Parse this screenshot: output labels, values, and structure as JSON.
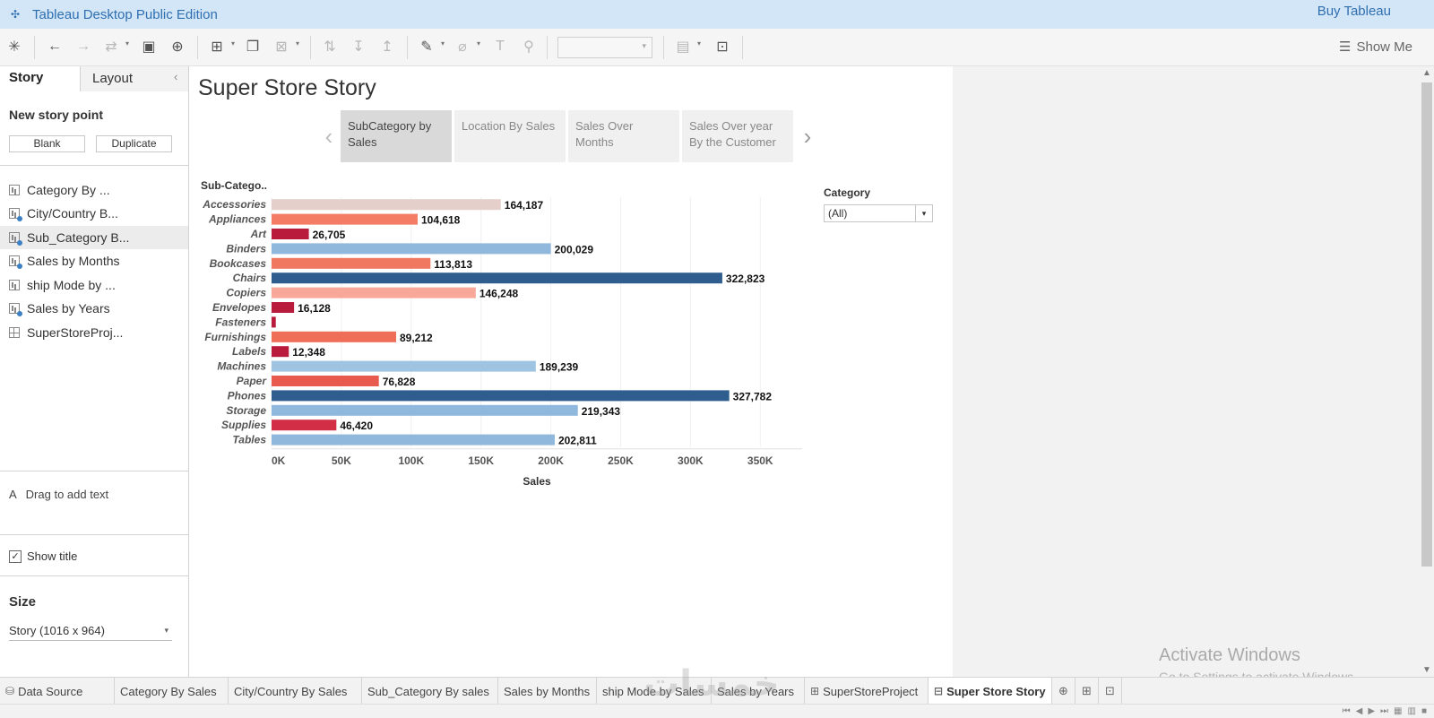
{
  "titlebar": {
    "app_title": "Tableau Desktop Public Edition",
    "buy_label": "Buy Tableau"
  },
  "toolbar": {
    "show_me_label": "Show Me"
  },
  "sidebar": {
    "tabs": {
      "story": "Story",
      "layout": "Layout"
    },
    "new_story_point": "New story point",
    "blank_label": "Blank",
    "duplicate_label": "Duplicate",
    "sheets": [
      {
        "label": "Category By  ...",
        "icon": "sheet-icon"
      },
      {
        "label": "City/Country B...",
        "icon": "map-sheet-icon"
      },
      {
        "label": "Sub_Category B...",
        "icon": "map-sheet-icon"
      },
      {
        "label": "Sales by Months",
        "icon": "map-sheet-icon"
      },
      {
        "label": "ship Mode by ...",
        "icon": "sheet-icon"
      },
      {
        "label": "Sales by Years",
        "icon": "map-sheet-icon"
      },
      {
        "label": "SuperStoreProj...",
        "icon": "dashboard-icon"
      }
    ],
    "drag_text": "Drag to add text",
    "show_title": "Show title",
    "size_label": "Size",
    "size_value": "Story (1016 x 964)"
  },
  "story": {
    "title": "Super Store Story",
    "points": [
      "SubCategory by Sales",
      "Location By Sales",
      "Sales Over Months",
      "Sales Over year By the Customer"
    ],
    "active_point": 0
  },
  "filter": {
    "label": "Category",
    "value": "(All)"
  },
  "chart_data": {
    "type": "bar",
    "orientation": "horizontal",
    "row_header": "Sub-Catego..",
    "xlabel": "Sales",
    "xlim": [
      0,
      380000
    ],
    "xticks": [
      0,
      50000,
      100000,
      150000,
      200000,
      250000,
      300000,
      350000
    ],
    "xtick_labels": [
      "0K",
      "50K",
      "100K",
      "150K",
      "200K",
      "250K",
      "300K",
      "350K"
    ],
    "categories": [
      "Accessories",
      "Appliances",
      "Art",
      "Binders",
      "Bookcases",
      "Chairs",
      "Copiers",
      "Envelopes",
      "Fasteners",
      "Furnishings",
      "Labels",
      "Machines",
      "Paper",
      "Phones",
      "Storage",
      "Supplies",
      "Tables"
    ],
    "values": [
      164187,
      104618,
      26705,
      200029,
      113813,
      322823,
      146248,
      16128,
      3024,
      89212,
      12348,
      189239,
      76828,
      327782,
      219343,
      46420,
      202811
    ],
    "value_labels": [
      "164,187",
      "104,618",
      "26,705",
      "200,029",
      "113,813",
      "322,823",
      "146,248",
      "16,128",
      "",
      "89,212",
      "12,348",
      "189,239",
      "76,828",
      "327,782",
      "219,343",
      "46,420",
      "202,811"
    ],
    "colors": [
      "#e4cfca",
      "#f47c64",
      "#b81b3c",
      "#8fb8dc",
      "#f07860",
      "#2f5e8e",
      "#f8a898",
      "#b81b3c",
      "#b81b3c",
      "#ee6e58",
      "#b81b3c",
      "#9ec4e2",
      "#e85a4e",
      "#2f5e8e",
      "#8fb8dc",
      "#d22e45",
      "#8fb8dc"
    ],
    "grid": false
  },
  "bottom_tabs": [
    {
      "label": "Data Source",
      "icon": "datasource-icon",
      "active": false
    },
    {
      "label": "Category By  Sales",
      "icon": "",
      "active": false
    },
    {
      "label": "City/Country By Sales",
      "icon": "",
      "active": false
    },
    {
      "label": "Sub_Category By sales",
      "icon": "",
      "active": false
    },
    {
      "label": "Sales by Months",
      "icon": "",
      "active": false
    },
    {
      "label": "ship Mode by Sales",
      "icon": "",
      "active": false
    },
    {
      "label": "Sales by Years",
      "icon": "",
      "active": false
    },
    {
      "label": "SuperStoreProject",
      "icon": "dashboard-icon",
      "active": false
    },
    {
      "label": "Super Store Story",
      "icon": "story-icon",
      "active": true
    }
  ],
  "watermark": {
    "line1": "Activate Windows",
    "line2": "Go to Settings to activate Windows."
  },
  "overlay_watermark": "خمسات"
}
